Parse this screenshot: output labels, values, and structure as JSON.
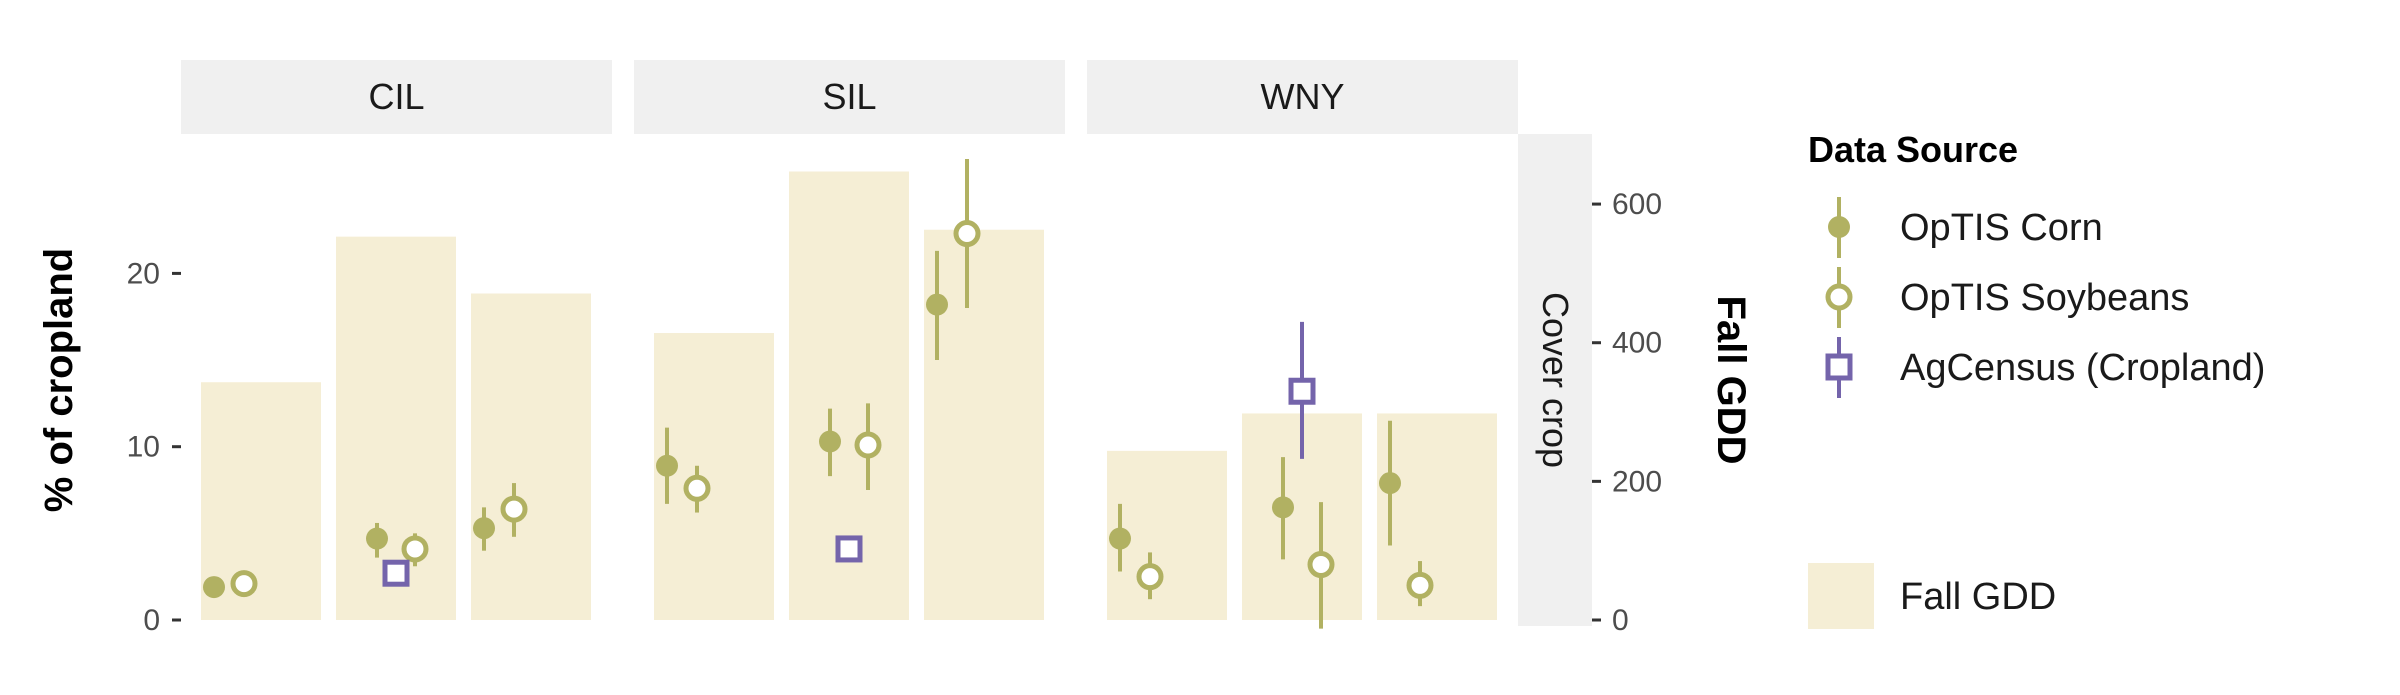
{
  "chart_data": {
    "type": "bar",
    "facets": [
      "CIL",
      "SIL",
      "WNY"
    ],
    "right_strip_label": "Cover crop",
    "ylabel_left": "% of cropland",
    "ylabel_right": "Fall GDD",
    "ylim_left": [
      0,
      26.5
    ],
    "ylim_right": [
      0,
      690
    ],
    "left_ticks": [
      0,
      10,
      20
    ],
    "right_ticks": [
      0,
      200,
      400,
      600
    ],
    "bar_color": "#f5eed5",
    "colors": {
      "corn": "#b1b162",
      "soy": "#b1b162",
      "census": "#7464ab"
    },
    "groups": [
      {
        "facet": "CIL",
        "slot": 0,
        "gdd": 343,
        "corn": {
          "value": 1.9,
          "low": 1.5,
          "high": 2.3
        },
        "soy": {
          "value": 2.1,
          "low": 1.6,
          "high": 2.6
        },
        "census": null
      },
      {
        "facet": "CIL",
        "slot": 1,
        "gdd": 553,
        "corn": {
          "value": 4.7,
          "low": 3.6,
          "high": 5.6
        },
        "soy": {
          "value": 4.1,
          "low": 3.1,
          "high": 5.0
        },
        "census": {
          "value": 2.7,
          "low": 2.2,
          "high": 3.2
        }
      },
      {
        "facet": "CIL",
        "slot": 2,
        "gdd": 471,
        "corn": {
          "value": 5.3,
          "low": 4.0,
          "high": 6.5
        },
        "soy": {
          "value": 6.4,
          "low": 4.8,
          "high": 7.9
        },
        "census": null
      },
      {
        "facet": "SIL",
        "slot": 0,
        "gdd": 414,
        "corn": {
          "value": 8.9,
          "low": 6.7,
          "high": 11.1
        },
        "soy": {
          "value": 7.6,
          "low": 6.2,
          "high": 8.9
        },
        "census": null
      },
      {
        "facet": "SIL",
        "slot": 1,
        "gdd": 647,
        "corn": {
          "value": 10.3,
          "low": 8.3,
          "high": 12.2
        },
        "soy": {
          "value": 10.1,
          "low": 7.5,
          "high": 12.5
        },
        "census": {
          "value": 4.1,
          "low": 3.6,
          "high": 4.6
        }
      },
      {
        "facet": "SIL",
        "slot": 2,
        "gdd": 563,
        "corn": {
          "value": 18.2,
          "low": 15.0,
          "high": 21.3
        },
        "soy": {
          "value": 22.3,
          "low": 18.0,
          "high": 26.6
        },
        "census": null
      },
      {
        "facet": "WNY",
        "slot": 0,
        "gdd": 244,
        "corn": {
          "value": 4.7,
          "low": 2.8,
          "high": 6.7
        },
        "soy": {
          "value": 2.5,
          "low": 1.2,
          "high": 3.9
        },
        "census": null
      },
      {
        "facet": "WNY",
        "slot": 1,
        "gdd": 298,
        "corn": {
          "value": 6.5,
          "low": 3.5,
          "high": 9.4
        },
        "soy": {
          "value": 3.2,
          "low": -0.5,
          "high": 6.8
        },
        "census": {
          "value": 13.2,
          "low": 9.3,
          "high": 17.2
        }
      },
      {
        "facet": "WNY",
        "slot": 2,
        "gdd": 298,
        "corn": {
          "value": 7.9,
          "low": 4.3,
          "high": 11.5
        },
        "soy": {
          "value": 2.0,
          "low": 0.8,
          "high": 3.4
        },
        "census": null
      }
    ],
    "legend": {
      "title": "Data Source",
      "items": [
        {
          "key": "corn",
          "label": "OpTIS Corn"
        },
        {
          "key": "soy",
          "label": "OpTIS Soybeans"
        },
        {
          "key": "census",
          "label": "AgCensus (Cropland)"
        }
      ],
      "bar_label": "Fall GDD"
    }
  }
}
